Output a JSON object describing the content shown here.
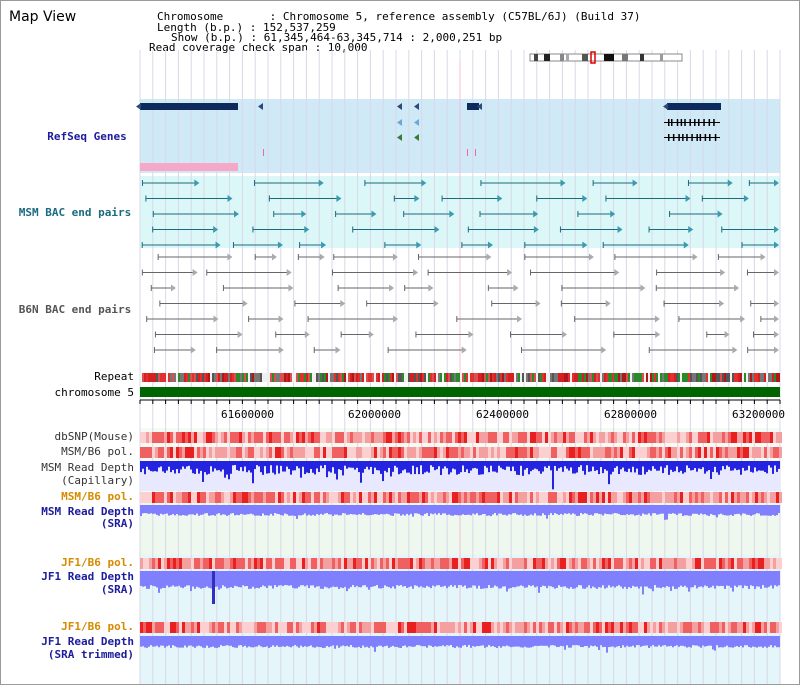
{
  "title": "Map View",
  "info": {
    "chromosome": "Chromosome       : Chromosome 5, reference assembly (C57BL/6J) (Build 37)",
    "length": "Length (b.p.) : 152,537,259",
    "show": "Show (b.p.) : 61,345,464-63,345,714 : 2,000,251 bp",
    "span": "Read coverage check span : 10,000"
  },
  "tracks": {
    "refseq": "RefSeq Genes",
    "msm_bac": "MSM BAC end pairs",
    "b6n_bac": "B6N BAC end pairs",
    "repeat": "Repeat",
    "chromosome": "chromosome 5",
    "dbsnp": "dbSNP(Mouse)",
    "msm_pol": "MSM/B6 pol.",
    "msm_depth_cap_1": "MSM Read Depth",
    "msm_depth_cap_2": "(Capillary)",
    "msm_pol_2": "MSM/B6 pol.",
    "msm_depth_sra_1": "MSM Read Depth",
    "msm_depth_sra_2": "(SRA)",
    "jf1_pol": "JF1/B6 pol.",
    "jf1_depth_1": "JF1 Read Depth",
    "jf1_depth_2": "(SRA)",
    "jf1_pol_2": "JF1/B6 pol.",
    "jf1_trim_1": "JF1 Read Depth",
    "jf1_trim_2": "(SRA trimmed)"
  },
  "axis": {
    "ticks": [
      "61600000",
      "62000000",
      "62400000",
      "62800000",
      "63200000"
    ]
  },
  "colors": {
    "refseq_bg": "#cfe9f7",
    "msm_bac_bg": "#dcf7f7",
    "gene_dark": "#0d2a5c",
    "chrom_green": "#006400",
    "depth_blue": "#2424e0",
    "depth_light": "#8080ff"
  }
}
